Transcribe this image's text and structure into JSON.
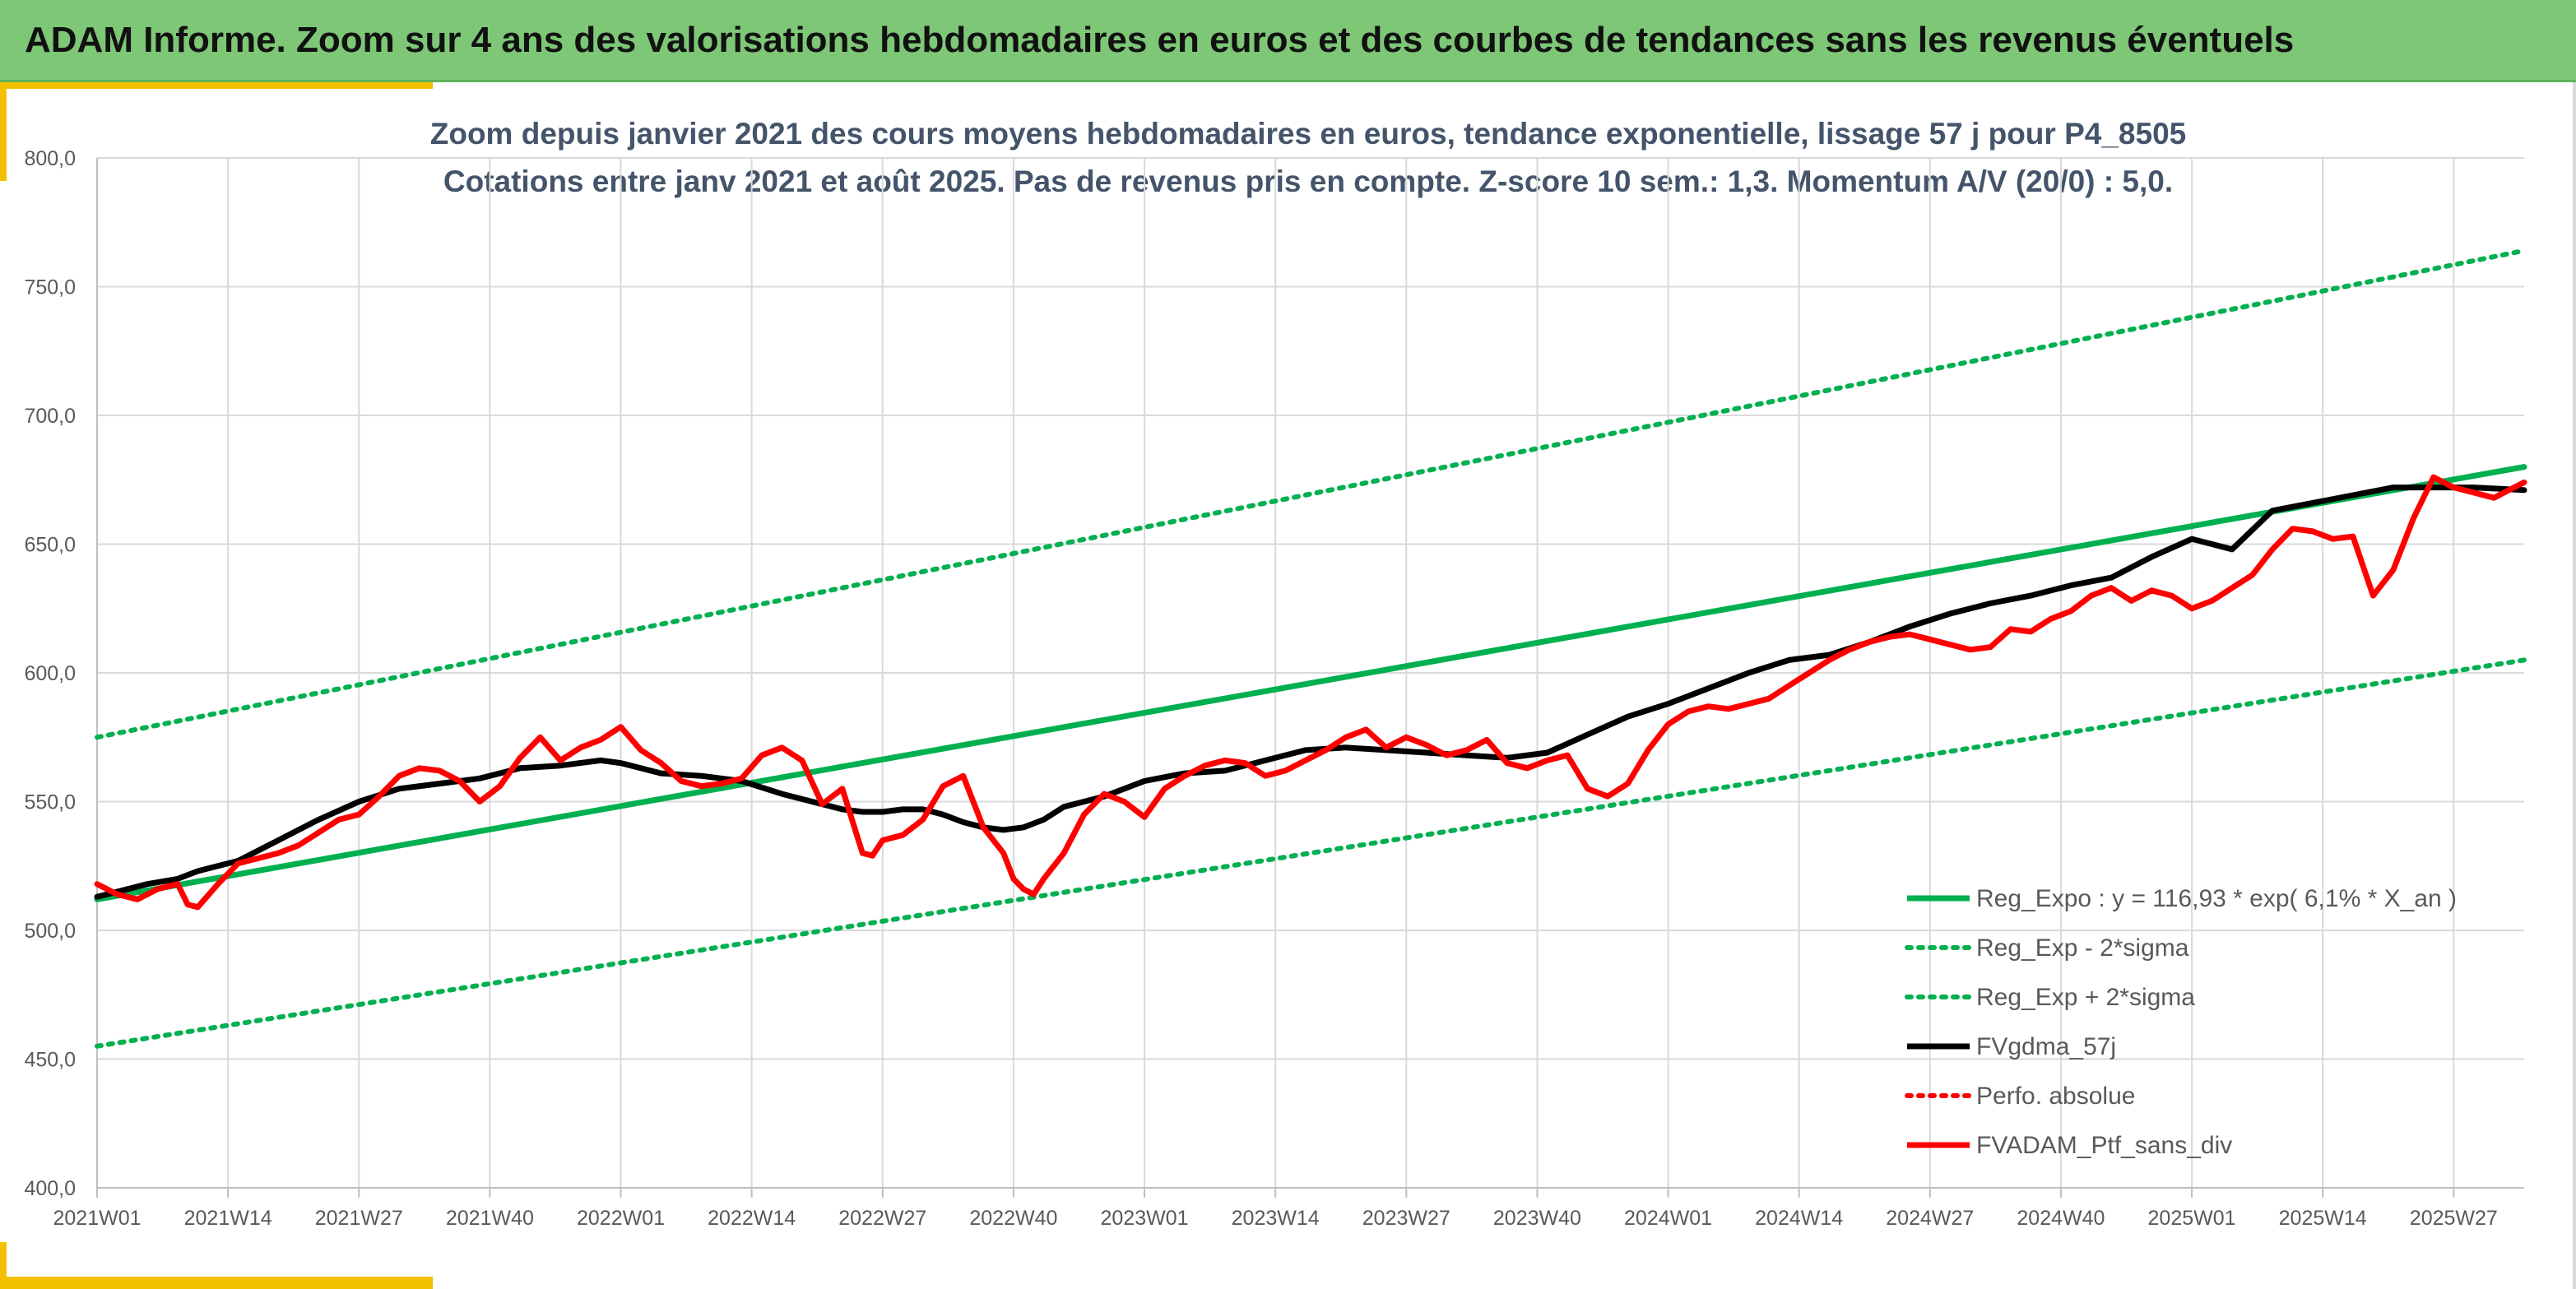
{
  "header": {
    "title": "ADAM Informe. Zoom sur 4 ans des valorisations hebdomadaires en euros et des courbes de tendances sans les revenus éventuels"
  },
  "chart_data": {
    "type": "line",
    "title_line1": "Zoom depuis janvier 2021 des cours moyens hebdomadaires en euros, tendance exponentielle, lissage 57 j pour P4_8505",
    "title_line2": "Cotations entre janv 2021 et août 2025. Pas de revenus pris en compte. Z-score 10 sem.: 1,3. Momentum A/V (20/0) : 5,0.",
    "x_labels": [
      "2021W01",
      "2021W14",
      "2021W27",
      "2021W40",
      "2022W01",
      "2022W14",
      "2022W27",
      "2022W40",
      "2023W01",
      "2023W14",
      "2023W27",
      "2023W40",
      "2024W01",
      "2024W14",
      "2024W27",
      "2024W40",
      "2025W01",
      "2025W14",
      "2025W27"
    ],
    "x_label_week_index": [
      0,
      13,
      26,
      39,
      52,
      65,
      78,
      91,
      104,
      117,
      130,
      143,
      156,
      169,
      182,
      195,
      208,
      221,
      234
    ],
    "x_max_week_index": 241,
    "y_ticks": [
      "400,0",
      "450,0",
      "500,0",
      "550,0",
      "600,0",
      "650,0",
      "700,0",
      "750,0",
      "800,0"
    ],
    "ylim": [
      400,
      800
    ],
    "grid": true,
    "legend_position": "bottom-right",
    "colors": {
      "reg_expo": "#00b050",
      "sigma_bands": "#00b050",
      "gdma": "#000000",
      "perfo": "#ff0000",
      "ptf": "#ff0000",
      "grid": "#d9d9d9",
      "header_bg": "#7dc776",
      "accent": "#f2c200"
    },
    "series": [
      {
        "name": "Reg_Expo : y = 116,93 * exp( 6,1% *  X_an )",
        "style": "solid-thick",
        "x": [
          0,
          241
        ],
        "y": [
          512,
          680
        ]
      },
      {
        "name": "Reg_Exp - 2*sigma",
        "style": "dotted",
        "x": [
          0,
          241
        ],
        "y": [
          455,
          605
        ]
      },
      {
        "name": "Reg_Exp + 2*sigma",
        "style": "dotted",
        "x": [
          0,
          241
        ],
        "y": [
          575,
          764
        ]
      },
      {
        "name": "FVgdma_57j",
        "style": "solid-medium",
        "x": [
          0,
          5,
          8,
          10,
          14,
          18,
          22,
          26,
          30,
          34,
          38,
          42,
          46,
          50,
          52,
          56,
          60,
          64,
          68,
          72,
          74,
          76,
          78,
          80,
          82,
          84,
          86,
          88,
          90,
          92,
          94,
          96,
          98,
          100,
          104,
          108,
          112,
          116,
          120,
          124,
          128,
          132,
          136,
          140,
          144,
          148,
          152,
          156,
          160,
          164,
          168,
          172,
          176,
          180,
          184,
          188,
          192,
          196,
          200,
          204,
          208,
          212,
          216,
          220,
          224,
          228,
          232,
          236,
          241
        ],
        "y": [
          513,
          518,
          520,
          523,
          527,
          535,
          543,
          550,
          555,
          557,
          559,
          563,
          564,
          566,
          565,
          561,
          560,
          558,
          553,
          549,
          547,
          546,
          546,
          547,
          547,
          545,
          542,
          540,
          539,
          540,
          543,
          548,
          550,
          552,
          558,
          561,
          562,
          566,
          570,
          571,
          570,
          569,
          568,
          567,
          569,
          576,
          583,
          588,
          594,
          600,
          605,
          607,
          612,
          618,
          623,
          627,
          630,
          634,
          637,
          645,
          652,
          648,
          663,
          666,
          669,
          672,
          672,
          672,
          671
        ]
      },
      {
        "name": "Perfo. absolue",
        "style": "dotted",
        "x": [],
        "y": []
      },
      {
        "name": "FVADAM_Ptf_sans_div",
        "style": "solid-thick",
        "x": [
          0,
          2,
          4,
          6,
          8,
          9,
          10,
          12,
          14,
          16,
          18,
          20,
          22,
          24,
          26,
          28,
          30,
          32,
          34,
          36,
          38,
          40,
          42,
          44,
          46,
          48,
          50,
          52,
          54,
          56,
          58,
          60,
          62,
          64,
          66,
          68,
          70,
          72,
          74,
          76,
          77,
          78,
          80,
          82,
          84,
          86,
          88,
          90,
          91,
          92,
          93,
          94,
          96,
          98,
          100,
          102,
          104,
          106,
          108,
          110,
          112,
          114,
          116,
          118,
          120,
          122,
          124,
          126,
          128,
          130,
          132,
          134,
          136,
          138,
          140,
          142,
          144,
          146,
          148,
          150,
          152,
          154,
          156,
          158,
          160,
          162,
          164,
          166,
          168,
          170,
          172,
          174,
          176,
          178,
          180,
          182,
          184,
          186,
          188,
          190,
          192,
          194,
          196,
          198,
          200,
          202,
          204,
          206,
          208,
          210,
          212,
          214,
          216,
          218,
          220,
          222,
          224,
          226,
          228,
          230,
          232,
          234,
          236,
          238,
          240,
          241
        ],
        "y": [
          518,
          514,
          512,
          516,
          518,
          510,
          509,
          518,
          526,
          528,
          530,
          533,
          538,
          543,
          545,
          552,
          560,
          563,
          562,
          558,
          550,
          556,
          567,
          575,
          566,
          571,
          574,
          579,
          570,
          565,
          558,
          556,
          557,
          559,
          568,
          571,
          566,
          549,
          555,
          530,
          529,
          535,
          537,
          543,
          556,
          560,
          540,
          530,
          520,
          516,
          514,
          520,
          530,
          545,
          553,
          550,
          544,
          555,
          560,
          564,
          566,
          565,
          560,
          562,
          566,
          570,
          575,
          578,
          571,
          575,
          572,
          568,
          570,
          574,
          565,
          563,
          566,
          568,
          555,
          552,
          557,
          570,
          580,
          585,
          587,
          586,
          588,
          590,
          595,
          600,
          605,
          609,
          612,
          614,
          615,
          613,
          611,
          609,
          610,
          617,
          616,
          621,
          624,
          630,
          633,
          628,
          632,
          630,
          625,
          628,
          633,
          638,
          648,
          656,
          655,
          652,
          653,
          630,
          640,
          660,
          676,
          672,
          670,
          668,
          672,
          674
        ]
      }
    ],
    "legend": [
      "Reg_Expo : y = 116,93 * exp( 6,1% *  X_an )",
      "Reg_Exp - 2*sigma",
      "Reg_Exp + 2*sigma",
      "FVgdma_57j",
      "Perfo. absolue",
      "FVADAM_Ptf_sans_div"
    ]
  }
}
